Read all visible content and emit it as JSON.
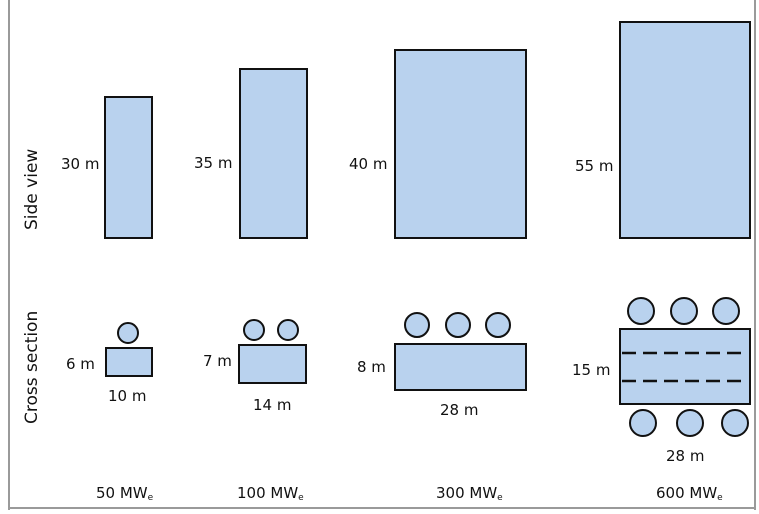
{
  "row_labels": {
    "side_view": "Side view",
    "cross_section": "Cross section"
  },
  "colors": {
    "fill": "#b9d2ee",
    "stroke": "#111111",
    "frame": "#9a9a9a"
  },
  "units": [
    {
      "capacity": "50 MW",
      "capacity_sub": "e",
      "side_height": "30 m",
      "cs_height": "6 m",
      "cs_width": "10 m"
    },
    {
      "capacity": "100 MW",
      "capacity_sub": "e",
      "side_height": "35 m",
      "cs_height": "7 m",
      "cs_width": "14 m"
    },
    {
      "capacity": "300 MW",
      "capacity_sub": "e",
      "side_height": "40 m",
      "cs_height": "8 m",
      "cs_width": "28 m"
    },
    {
      "capacity": "600 MW",
      "capacity_sub": "e",
      "side_height": "55 m",
      "cs_height": "15 m",
      "cs_width": "28 m"
    }
  ]
}
